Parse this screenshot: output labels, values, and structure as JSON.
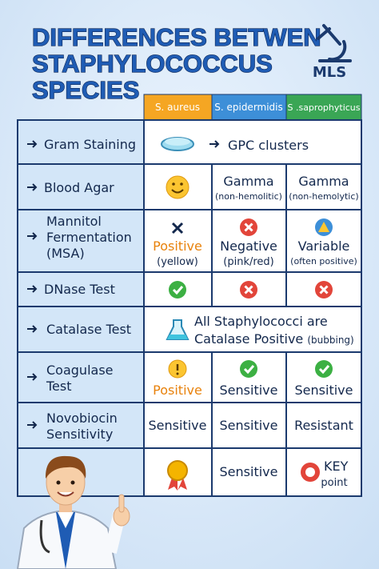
{
  "header": {
    "title": [
      "DIFFERENCES BETWEN",
      "STAPHYLOCOCCUS",
      "SPECIES"
    ],
    "logo": "MLS"
  },
  "table": {
    "columns": [
      "S. aureus",
      "S. epidermidis",
      "S .saprophyticus"
    ],
    "rows": [
      {
        "label": [
          "Gram Staining"
        ],
        "all": [
          "GPC clusters"
        ]
      },
      {
        "label": [
          "Blood Agar"
        ],
        "epidermidis": [
          "Gamma",
          "(non-hemolitic)"
        ],
        "saprophyticus": [
          "Gamma",
          "(non-hemolytic)"
        ]
      },
      {
        "label": [
          "Mannitol",
          "Fermentation",
          "(MSA)"
        ],
        "aureus": [
          "Positive",
          "(yellow)"
        ],
        "epidermidis": [
          "Negative",
          "(pink/red)"
        ],
        "saprophyticus": [
          "Variable",
          "(often positive)"
        ]
      },
      {
        "label": [
          "DNase Test"
        ]
      },
      {
        "label": [
          "Catalase Test"
        ],
        "all": [
          "All Staphylococci are",
          "Catalase Positive",
          "(bubbing)"
        ]
      },
      {
        "label": [
          "Coagulase",
          "Test"
        ],
        "aureus": [
          "Positive"
        ],
        "epidermidis": [
          "Sensitive"
        ],
        "saprophyticus": [
          "Sensitive"
        ]
      },
      {
        "label": [
          "Novobiocin",
          "Sensitivity"
        ],
        "aureus": [
          "Sensitive"
        ],
        "epidermidis": [
          "Sensitive"
        ],
        "saprophyticus": [
          "Resistant"
        ]
      },
      {
        "epidermidis": [
          "Sensitive"
        ],
        "saprophyticus": [
          "KEY",
          "point"
        ]
      }
    ]
  }
}
